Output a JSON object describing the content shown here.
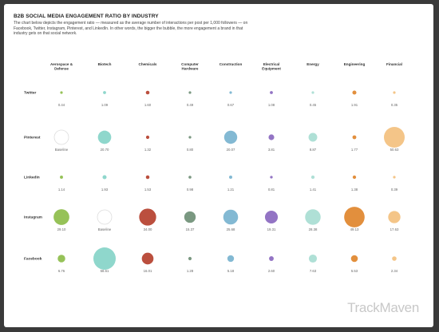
{
  "title": "B2B SOCIAL MEDIA ENGAGEMENT RATIO BY INDUSTRY",
  "subtitle": "The chart below depicts the engagement ratio — measured as the average number of interactions per post per 1,000 followers — on Facebook, Twitter, Instagram, Pinterest, and LinkedIn. In other words, the bigger the bubble, the more engagement a brand in that industry gets on that social network.",
  "brand": "TrackMaven",
  "chart_data": {
    "type": "scatter",
    "encoding": "bubble",
    "baseline_label": "Baseline",
    "industries": [
      "Aerospace & Defense",
      "Biotech",
      "Chemicals",
      "Computer Hardware",
      "Construction",
      "Electrical Equipment",
      "Energy",
      "Engineering",
      "Financial"
    ],
    "industry_colors": [
      "#8dbd4a",
      "#86d4c8",
      "#b5402e",
      "#6f8f76",
      "#78b3cf",
      "#8a68bf",
      "#a8ddd2",
      "#e0862c",
      "#f3c07e"
    ],
    "networks": [
      "Twitter",
      "Pinterest",
      "LinkedIn",
      "Instagram",
      "Facebook"
    ],
    "values": [
      [
        "0.44",
        "1.09",
        "1.60",
        "0.49",
        "0.67",
        "1.08",
        "0.45",
        "1.91",
        "0.35"
      ],
      [
        "Baseline",
        "20.70",
        "1.32",
        "0.80",
        "20.07",
        "3.81",
        "8.87",
        "1.77",
        "50.63"
      ],
      [
        "1.14",
        "1.93",
        "1.53",
        "0.98",
        "1.21",
        "0.81",
        "1.41",
        "1.38",
        "0.39"
      ],
      [
        "29.10",
        "Baseline",
        "34.00",
        "15.37",
        "25.68",
        "19.31",
        "28.38",
        "49.13",
        "17.63"
      ],
      [
        "6.76",
        "58.61",
        "16.01",
        "1.28",
        "5.18",
        "2.60",
        "7.63",
        "5.53",
        "2.34"
      ]
    ]
  }
}
